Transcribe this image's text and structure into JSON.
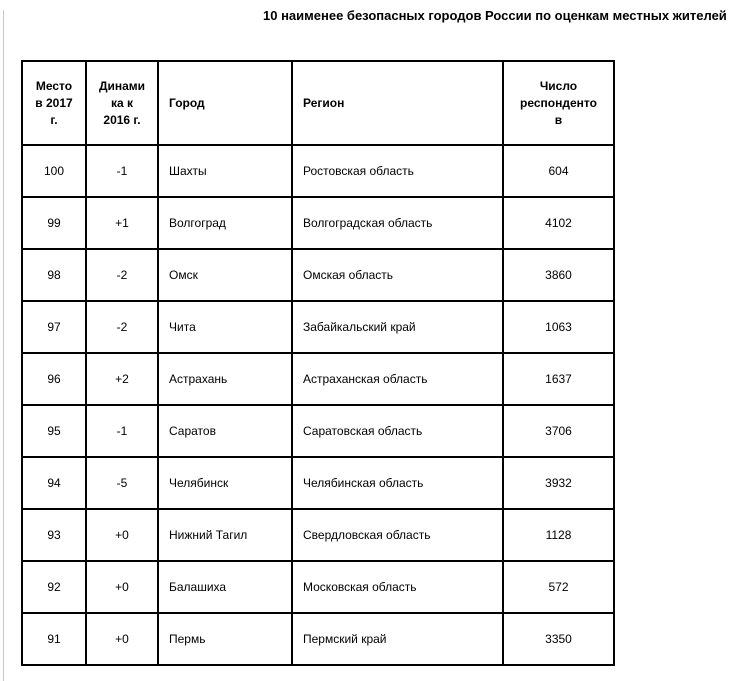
{
  "title": "10 наименее безопасных городов России по оценкам местных жителей",
  "table": {
    "columns": [
      {
        "key": "rank-2017",
        "label": "Место в 2017 г.",
        "align": "center"
      },
      {
        "key": "dynamics",
        "label": "Динамика к 2016 г.",
        "align": "center"
      },
      {
        "key": "city",
        "label": "Город",
        "align": "left"
      },
      {
        "key": "region",
        "label": "Регион",
        "align": "left"
      },
      {
        "key": "respondents",
        "label": "Число респондентов",
        "align": "center"
      }
    ],
    "rows": [
      [
        "100",
        "-1",
        "Шахты",
        "Ростовская область",
        "604"
      ],
      [
        "99",
        "+1",
        "Волгоград",
        "Волгоградская область",
        "4102"
      ],
      [
        "98",
        "-2",
        "Омск",
        "Омская область",
        "3860"
      ],
      [
        "97",
        "-2",
        "Чита",
        "Забайкальский край",
        "1063"
      ],
      [
        "96",
        "+2",
        "Астрахань",
        "Астраханская область",
        "1637"
      ],
      [
        "95",
        "-1",
        "Саратов",
        "Саратовская область",
        "3706"
      ],
      [
        "94",
        "-5",
        "Челябинск",
        "Челябинская область",
        "3932"
      ],
      [
        "93",
        "+0",
        "Нижний Тагил",
        "Свердловская область",
        "1128"
      ],
      [
        "92",
        "+0",
        "Балашиха",
        "Московская область",
        "572"
      ],
      [
        "91",
        "+0",
        "Пермь",
        "Пермский край",
        "3350"
      ]
    ]
  },
  "colors": {
    "border": "#000000",
    "text": "#000000",
    "page_edge": "#c8c8c8",
    "background": "#ffffff"
  }
}
